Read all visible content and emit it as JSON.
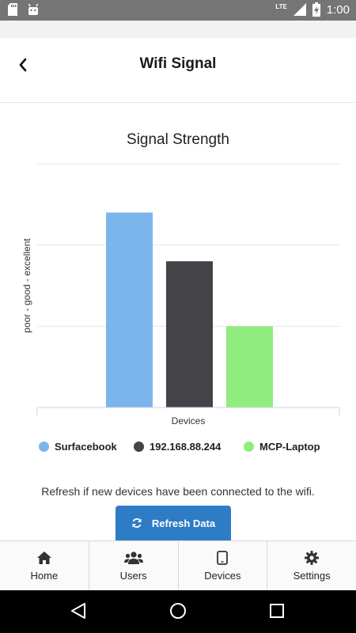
{
  "status_bar": {
    "time": "1:00",
    "network": "LTE",
    "icons": [
      "sd-card-icon",
      "android-icon",
      "signal-icon",
      "battery-charging-icon"
    ]
  },
  "header": {
    "title": "Wifi Signal",
    "back_icon": "chevron-left-icon"
  },
  "chart_data": {
    "type": "bar",
    "title": "Signal Strength",
    "xlabel": "Devices",
    "ylabel": "poor - good - excellent",
    "categories": [
      "Surfacebook",
      "192.168.88.244",
      "MCP-Laptop"
    ],
    "values": [
      2.4,
      1.8,
      1.0
    ],
    "ylim": [
      0,
      3
    ],
    "colors": [
      "#7cb5ec",
      "#434348",
      "#90ed7d"
    ],
    "grid": true,
    "legend": "bottom"
  },
  "info_text": "Refresh if new devices have been connected to the wifi.",
  "refresh_button": {
    "label": "Refresh Data",
    "icon": "refresh-icon"
  },
  "bottom_nav": {
    "items": [
      {
        "label": "Home",
        "icon": "home-icon"
      },
      {
        "label": "Users",
        "icon": "users-icon"
      },
      {
        "label": "Devices",
        "icon": "tablet-icon"
      },
      {
        "label": "Settings",
        "icon": "gear-icon"
      }
    ]
  }
}
